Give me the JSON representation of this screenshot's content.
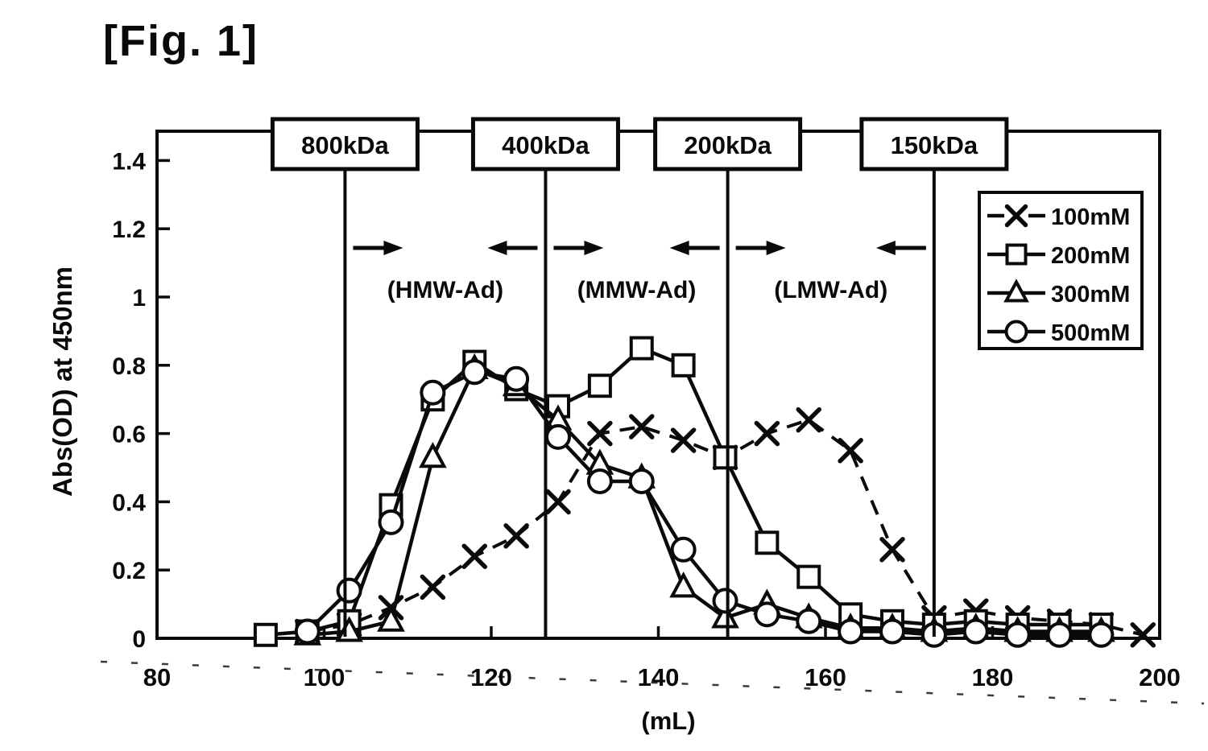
{
  "figure": {
    "label": "[Fig. 1]"
  },
  "chart_data": {
    "type": "line",
    "title": "",
    "xlabel": "(mL)",
    "ylabel": "Abs(OD) at 450nm",
    "xlim": [
      80,
      200
    ],
    "ylim": [
      0,
      1.5
    ],
    "grid": false,
    "legend_position": "top-right",
    "x_ticks": [
      80,
      100,
      120,
      140,
      160,
      180,
      200
    ],
    "x_tick_labels": [
      "80",
      "100",
      "120",
      "140",
      "160",
      "180",
      "200"
    ],
    "y_ticks": [
      0,
      0.2,
      0.4,
      0.6,
      0.8,
      1.0,
      1.2,
      1.4
    ],
    "y_tick_labels": [
      "0",
      "0.2",
      "0.4",
      "0.6",
      "0.8",
      "1",
      "1.2",
      "1.4"
    ],
    "series": [
      {
        "name": "100mM",
        "marker": "x",
        "line": "dashed",
        "points": [
          [
            98,
            0.02
          ],
          [
            103,
            0.04
          ],
          [
            108,
            0.09
          ],
          [
            113,
            0.15
          ],
          [
            118,
            0.24
          ],
          [
            123,
            0.3
          ],
          [
            128,
            0.4
          ],
          [
            133,
            0.6
          ],
          [
            138,
            0.62
          ],
          [
            143,
            0.58
          ],
          [
            148,
            0.53
          ],
          [
            153,
            0.6
          ],
          [
            158,
            0.64
          ],
          [
            163,
            0.55
          ],
          [
            168,
            0.26
          ],
          [
            173,
            0.06
          ],
          [
            178,
            0.08
          ],
          [
            183,
            0.06
          ],
          [
            188,
            0.05
          ],
          [
            193,
            0.04
          ],
          [
            198,
            0.01
          ]
        ]
      },
      {
        "name": "200mM",
        "marker": "square",
        "line": "solid",
        "points": [
          [
            93,
            0.01
          ],
          [
            98,
            0.02
          ],
          [
            103,
            0.05
          ],
          [
            108,
            0.39
          ],
          [
            113,
            0.7
          ],
          [
            118,
            0.81
          ],
          [
            123,
            0.73
          ],
          [
            128,
            0.68
          ],
          [
            133,
            0.74
          ],
          [
            138,
            0.85
          ],
          [
            143,
            0.8
          ],
          [
            148,
            0.53
          ],
          [
            153,
            0.28
          ],
          [
            158,
            0.18
          ],
          [
            163,
            0.07
          ],
          [
            168,
            0.05
          ],
          [
            173,
            0.04
          ],
          [
            178,
            0.05
          ],
          [
            183,
            0.04
          ],
          [
            188,
            0.04
          ],
          [
            193,
            0.04
          ]
        ]
      },
      {
        "name": "300mM",
        "marker": "triangle",
        "line": "solid",
        "points": [
          [
            98,
            0.01
          ],
          [
            103,
            0.02
          ],
          [
            108,
            0.05
          ],
          [
            113,
            0.53
          ],
          [
            118,
            0.79
          ],
          [
            123,
            0.74
          ],
          [
            128,
            0.64
          ],
          [
            133,
            0.51
          ],
          [
            138,
            0.47
          ],
          [
            143,
            0.15
          ],
          [
            148,
            0.06
          ],
          [
            153,
            0.1
          ],
          [
            158,
            0.06
          ],
          [
            163,
            0.03
          ],
          [
            168,
            0.03
          ],
          [
            173,
            0.02
          ],
          [
            178,
            0.03
          ],
          [
            183,
            0.02
          ],
          [
            188,
            0.02
          ],
          [
            193,
            0.02
          ]
        ]
      },
      {
        "name": "500mM",
        "marker": "circle",
        "line": "solid",
        "points": [
          [
            98,
            0.02
          ],
          [
            103,
            0.14
          ],
          [
            108,
            0.34
          ],
          [
            113,
            0.72
          ],
          [
            118,
            0.78
          ],
          [
            123,
            0.76
          ],
          [
            128,
            0.59
          ],
          [
            133,
            0.46
          ],
          [
            138,
            0.46
          ],
          [
            143,
            0.26
          ],
          [
            148,
            0.11
          ],
          [
            153,
            0.07
          ],
          [
            158,
            0.05
          ],
          [
            163,
            0.02
          ],
          [
            168,
            0.02
          ],
          [
            173,
            0.01
          ],
          [
            178,
            0.02
          ],
          [
            183,
            0.01
          ],
          [
            188,
            0.01
          ],
          [
            193,
            0.01
          ]
        ]
      }
    ],
    "molecular_weight_markers": [
      {
        "label": "800kDa",
        "mL": 102.5
      },
      {
        "label": "400kDa",
        "mL": 126.5
      },
      {
        "label": "200kDa",
        "mL": 148.3
      },
      {
        "label": "150kDa",
        "mL": 173.0
      }
    ],
    "regions": [
      {
        "label": "(HMW-Ad)",
        "from_mL": 102.5,
        "to_mL": 126.5
      },
      {
        "label": "(MMW-Ad)",
        "from_mL": 126.5,
        "to_mL": 148.3
      },
      {
        "label": "(LMW-Ad)",
        "from_mL": 148.3,
        "to_mL": 173.0
      }
    ],
    "legend": [
      {
        "label": "100mM",
        "marker": "x"
      },
      {
        "label": "200mM",
        "marker": "square"
      },
      {
        "label": "300mM",
        "marker": "triangle"
      },
      {
        "label": "500mM",
        "marker": "circle"
      }
    ]
  }
}
